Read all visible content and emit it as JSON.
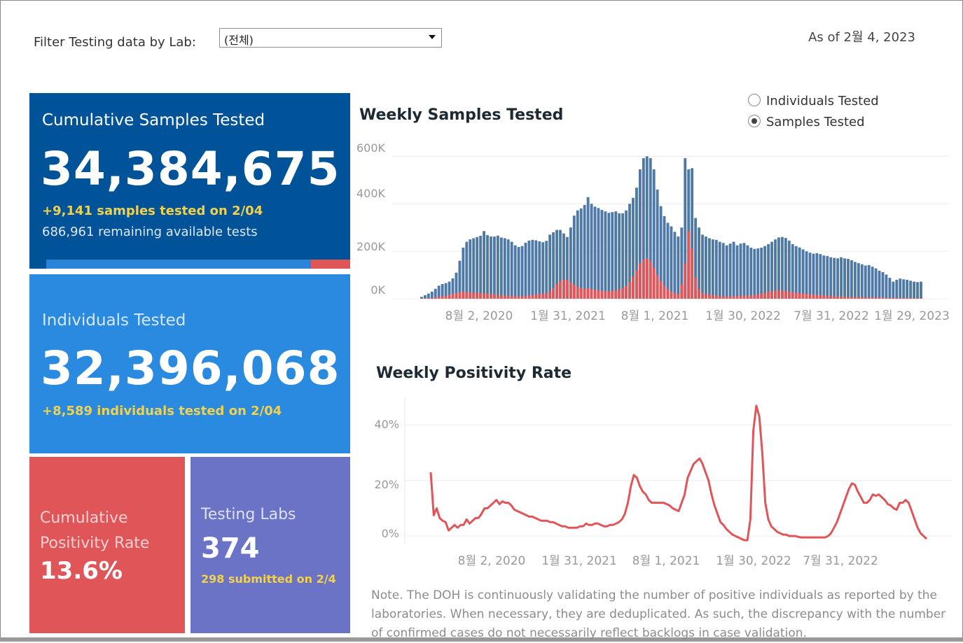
{
  "filter": {
    "label": "Filter Testing data by Lab:",
    "selected": "(전체)"
  },
  "as_of": "As of 2월 4, 2023",
  "tiles": {
    "samples": {
      "title": "Cumulative Samples Tested",
      "value": "34,384,675",
      "sub1": "+9,141 samples tested on 2/04",
      "sub2": "686,961 remaining available tests",
      "used_fraction": 0.87
    },
    "individuals": {
      "title": "Individuals Tested",
      "value": "32,396,068",
      "sub1": "+8,589  individuals  tested on 2/04"
    },
    "positivity": {
      "title": "Cumulative Positivity Rate",
      "value": "13.6%"
    },
    "labs": {
      "title": "Testing Labs",
      "value": "374",
      "sub1": "298 submitted on 2/4"
    }
  },
  "toggle": {
    "options": [
      "Individuals Tested",
      "Samples Tested"
    ],
    "selected": "Samples Tested"
  },
  "colors": {
    "samples_bar": "#4e79a7",
    "positive_bar": "#e15759",
    "positivity_line": "#e05558"
  },
  "chart_data": [
    {
      "type": "bar",
      "title": "Weekly Samples Tested",
      "y_ticks": [
        "600K",
        "400K",
        "200K",
        "0K"
      ],
      "x_ticks": [
        "8월 2, 2020",
        "1월 31, 2021",
        "8월 1, 2021",
        "1월 30, 2022",
        "7월 31, 2022",
        "1월 29, 2023"
      ],
      "ylim": [
        0,
        660000
      ],
      "series": [
        {
          "values": [
            8000,
            15000,
            22000,
            30000,
            42000,
            55000,
            62000,
            66000,
            72000,
            86000,
            110000,
            160000,
            215000,
            240000,
            250000,
            255000,
            260000,
            265000,
            285000,
            268000,
            262000,
            262000,
            266000,
            258000,
            255000,
            250000,
            240000,
            225000,
            218000,
            222000,
            236000,
            245000,
            248000,
            246000,
            242000,
            238000,
            244000,
            270000,
            280000,
            290000,
            290000,
            275000,
            260000,
            300000,
            350000,
            372000,
            380000,
            395000,
            428000,
            400000,
            388000,
            382000,
            374000,
            368000,
            362000,
            365000,
            368000,
            360000,
            360000,
            372000,
            400000,
            425000,
            468000,
            545000,
            592000,
            600000,
            592000,
            545000,
            460000,
            390000,
            348000,
            320000,
            305000,
            282000,
            262000,
            300000,
            592000,
            545000,
            550000,
            340000,
            300000,
            270000,
            262000,
            255000,
            250000,
            248000,
            240000,
            235000,
            225000,
            232000,
            240000,
            225000,
            232000,
            235000,
            225000,
            215000,
            210000,
            212000,
            215000,
            222000,
            230000,
            240000,
            250000,
            258000,
            260000,
            256000,
            245000,
            230000,
            222000,
            216000,
            208000,
            200000,
            194000,
            190000,
            192000,
            188000,
            182000,
            180000,
            175000,
            172000,
            170000,
            175000,
            170000,
            168000,
            162000,
            155000,
            150000,
            145000,
            140000,
            142000,
            135000,
            128000,
            118000,
            112000,
            102000,
            88000,
            72000,
            80000,
            85000,
            82000,
            80000,
            76000,
            72000,
            70000,
            72000
          ]
        },
        {
          "values": [
            1000,
            2000,
            3000,
            4000,
            6000,
            8000,
            10000,
            12000,
            16000,
            20000,
            24000,
            28000,
            30000,
            28000,
            27000,
            26000,
            25000,
            24000,
            23000,
            22000,
            20000,
            18000,
            16000,
            15000,
            14000,
            13000,
            12000,
            11000,
            10000,
            10000,
            12000,
            14000,
            16000,
            18000,
            20000,
            22000,
            24000,
            30000,
            45000,
            62000,
            75000,
            80000,
            80000,
            70000,
            60000,
            50000,
            45000,
            42000,
            44000,
            40000,
            38000,
            36000,
            34000,
            32000,
            32000,
            34000,
            36000,
            40000,
            45000,
            55000,
            70000,
            95000,
            120000,
            150000,
            165000,
            170000,
            160000,
            130000,
            100000,
            75000,
            55000,
            40000,
            30000,
            24000,
            20000,
            60000,
            150000,
            285000,
            210000,
            90000,
            40000,
            25000,
            20000,
            18000,
            16000,
            14000,
            12000,
            10000,
            10000,
            10000,
            11000,
            12000,
            12000,
            13000,
            13000,
            14000,
            16000,
            18000,
            22000,
            26000,
            30000,
            32000,
            34000,
            35000,
            34000,
            32000,
            30000,
            28000,
            26000,
            24000,
            22000,
            20000,
            18000,
            17000,
            16000,
            15000,
            14000,
            13000,
            12000,
            11000,
            10000,
            10000,
            9000,
            8000,
            8000,
            8000,
            7000,
            7000,
            6000,
            6000,
            6000,
            5000,
            5000,
            5000,
            4000,
            4000,
            4000,
            4000,
            4000,
            4000,
            4000,
            4000,
            3000,
            3000,
            3000
          ]
        }
      ]
    },
    {
      "type": "line",
      "title": "Weekly Positivity Rate",
      "y_ticks": [
        "40%",
        "20%",
        "0%"
      ],
      "x_ticks": [
        "8월 2, 2020",
        "1월 31, 2021",
        "8월 1, 2021",
        "1월 30, 2022",
        "7월 31, 2022"
      ],
      "ylim": [
        -3,
        50
      ],
      "values": [
        23,
        7.5,
        10,
        6.5,
        5.5,
        5,
        2,
        3,
        4,
        3,
        4,
        4,
        6,
        4.5,
        5.5,
        6.5,
        6.5,
        8,
        10,
        10,
        11,
        12,
        13,
        11.5,
        12.5,
        12,
        12,
        11,
        9.5,
        9,
        8.5,
        8,
        7.5,
        7,
        7,
        6.5,
        6,
        5.5,
        5.5,
        5.5,
        5,
        5,
        4.5,
        4,
        3.5,
        3.5,
        3,
        3,
        3,
        3,
        3.5,
        3.5,
        4.5,
        4,
        4,
        4.5,
        4.5,
        4,
        3.5,
        3.5,
        4,
        4,
        4.5,
        5,
        6,
        8,
        12,
        18,
        22,
        21,
        18,
        16,
        15,
        13,
        12,
        12,
        12,
        12,
        12,
        11.5,
        11,
        10,
        9.5,
        9,
        12,
        15,
        21,
        23.5,
        26,
        27,
        28,
        26,
        23,
        20,
        15,
        11,
        8,
        5,
        4,
        2.5,
        1.5,
        0.5,
        0,
        -0.5,
        -1,
        -1.5,
        -1.5,
        6,
        38,
        47,
        43,
        30,
        12,
        6,
        3.5,
        2.5,
        1.5,
        1,
        0.5,
        0.5,
        0,
        0,
        0,
        -0.3,
        -0.5,
        -0.5,
        -0.5,
        -0.5,
        -0.5,
        -0.5,
        -0.5,
        -0.5,
        -0.5,
        0,
        1,
        3,
        5,
        8,
        11,
        14,
        17,
        19,
        18.5,
        16,
        14,
        12,
        12,
        13,
        15,
        14.5,
        15,
        14,
        13,
        11.5,
        11,
        10,
        9.5,
        12,
        12,
        13,
        12,
        9,
        6,
        3,
        1,
        0,
        -1
      ]
    }
  ],
  "note": "Note. The DOH is continuously validating the number of positive individuals as reported by the laboratories. When necessary, they are deduplicated. As such, the discrepancy with the number of confirmed cases do not necessarily reflect backlogs in case validation."
}
